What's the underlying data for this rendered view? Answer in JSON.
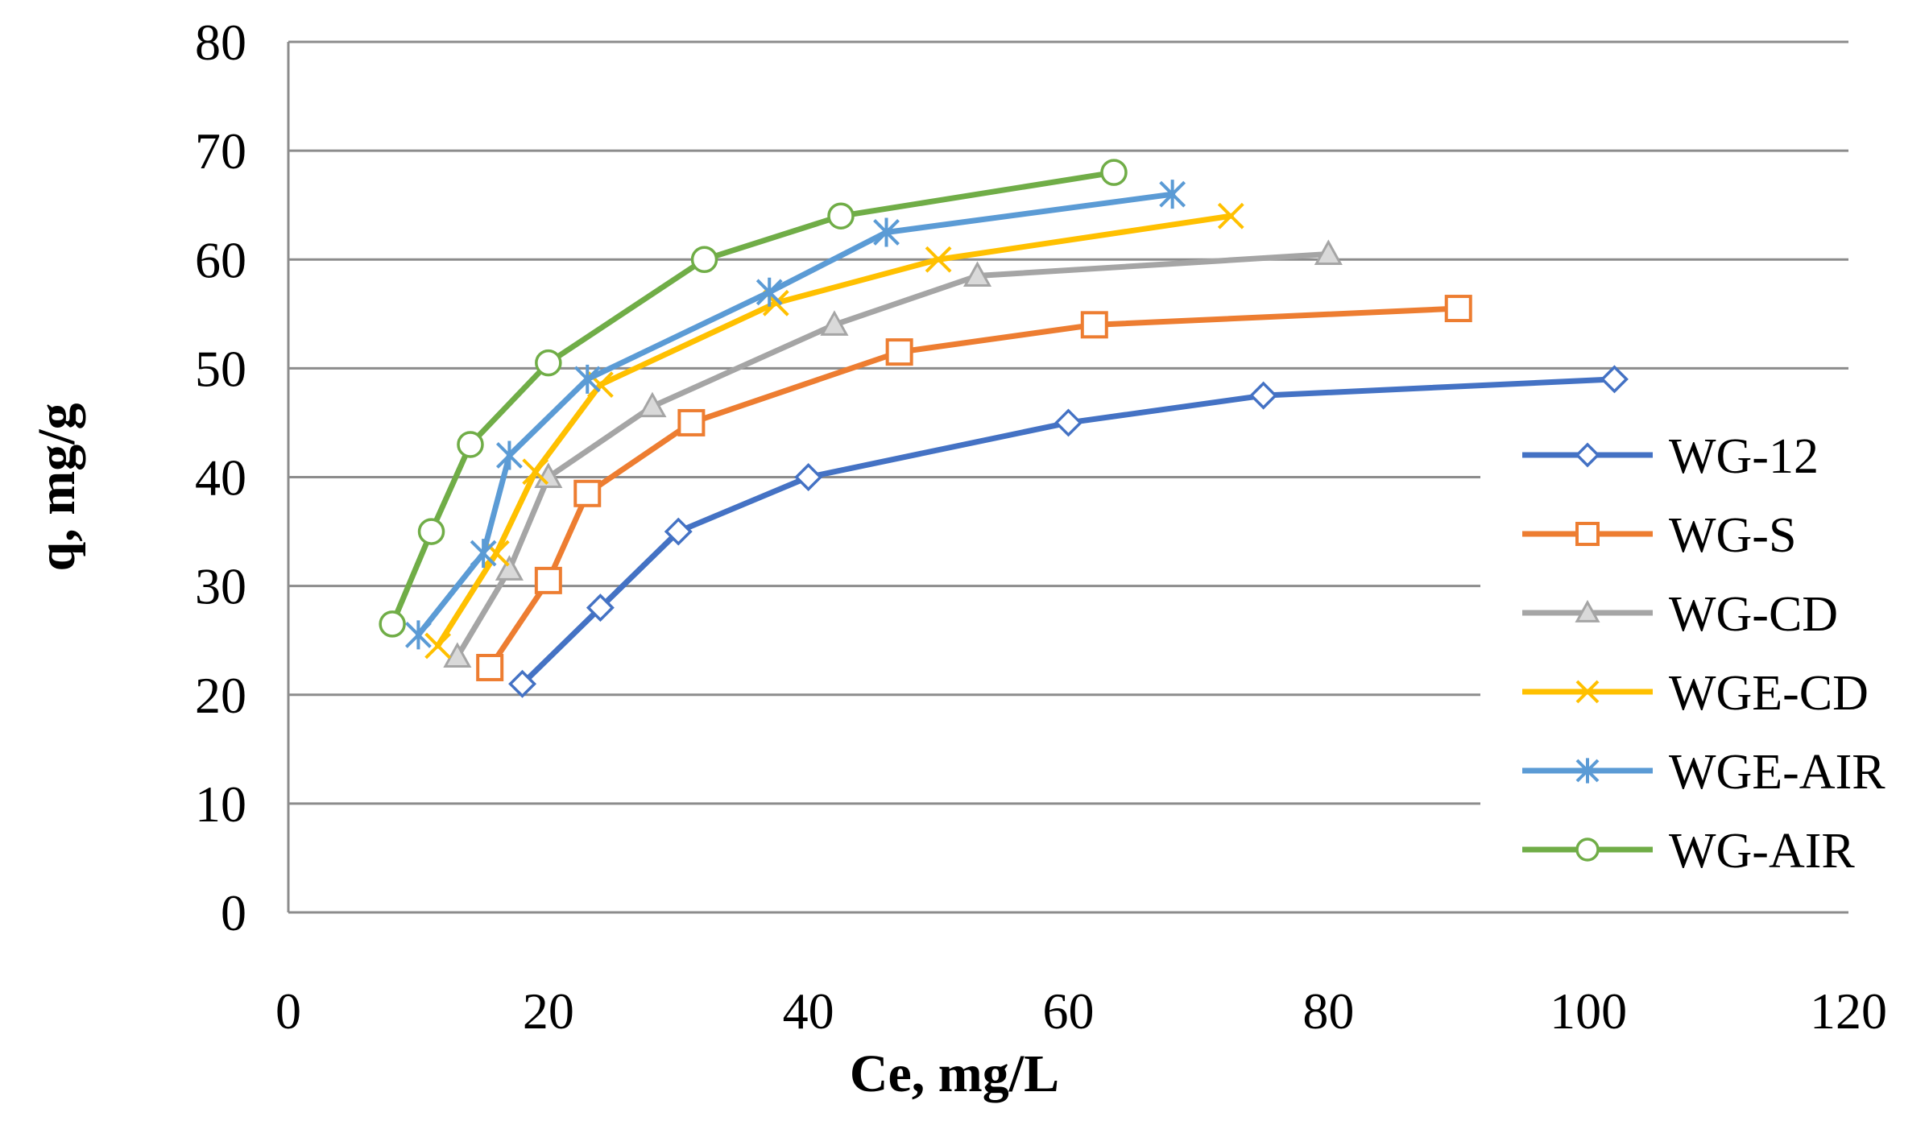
{
  "chart_data": {
    "type": "line",
    "title": "",
    "xlabel": "Ce, mg/L",
    "ylabel": "q, mg/g",
    "xlim": [
      0,
      120
    ],
    "ylim": [
      0,
      80
    ],
    "x_ticks": [
      0,
      20,
      40,
      60,
      80,
      100,
      120
    ],
    "y_ticks": [
      0,
      10,
      20,
      30,
      40,
      50,
      60,
      70,
      80
    ],
    "grid": "horizontal",
    "legend": "right",
    "series": [
      {
        "name": "WG-12",
        "color": "#4472C4",
        "marker": "diamond",
        "x": [
          18,
          24,
          30,
          40,
          60,
          75,
          102
        ],
        "y": [
          21,
          28,
          35,
          40,
          45,
          47.5,
          49
        ]
      },
      {
        "name": "WG-S",
        "color": "#ED7D31",
        "marker": "square",
        "x": [
          15.5,
          20,
          23,
          31,
          47,
          62,
          90
        ],
        "y": [
          22.5,
          30.5,
          38.5,
          45,
          51.5,
          54,
          55.5
        ]
      },
      {
        "name": "WG-CD",
        "color": "#A5A5A5",
        "marker": "triangle",
        "x": [
          13,
          17,
          20,
          28,
          42,
          53,
          80
        ],
        "y": [
          23.5,
          31.5,
          40,
          46.5,
          54,
          58.5,
          60.5
        ]
      },
      {
        "name": "WGE-CD",
        "color": "#FFC000",
        "marker": "x",
        "x": [
          11.5,
          16,
          19,
          24,
          37.5,
          50,
          72.5
        ],
        "y": [
          24.5,
          33,
          40.5,
          48.5,
          56,
          60,
          64
        ]
      },
      {
        "name": "WGE-AIR",
        "color": "#5B9BD5",
        "marker": "star",
        "x": [
          10,
          15,
          17,
          23,
          37,
          46,
          68
        ],
        "y": [
          25.5,
          33,
          42,
          49,
          57,
          62.5,
          66
        ]
      },
      {
        "name": "WG-AIR",
        "color": "#70AD47",
        "marker": "circle",
        "x": [
          8,
          11,
          14,
          20,
          32,
          42.5,
          63.5
        ],
        "y": [
          26.5,
          35,
          43,
          50.5,
          60,
          64,
          68
        ]
      }
    ]
  }
}
